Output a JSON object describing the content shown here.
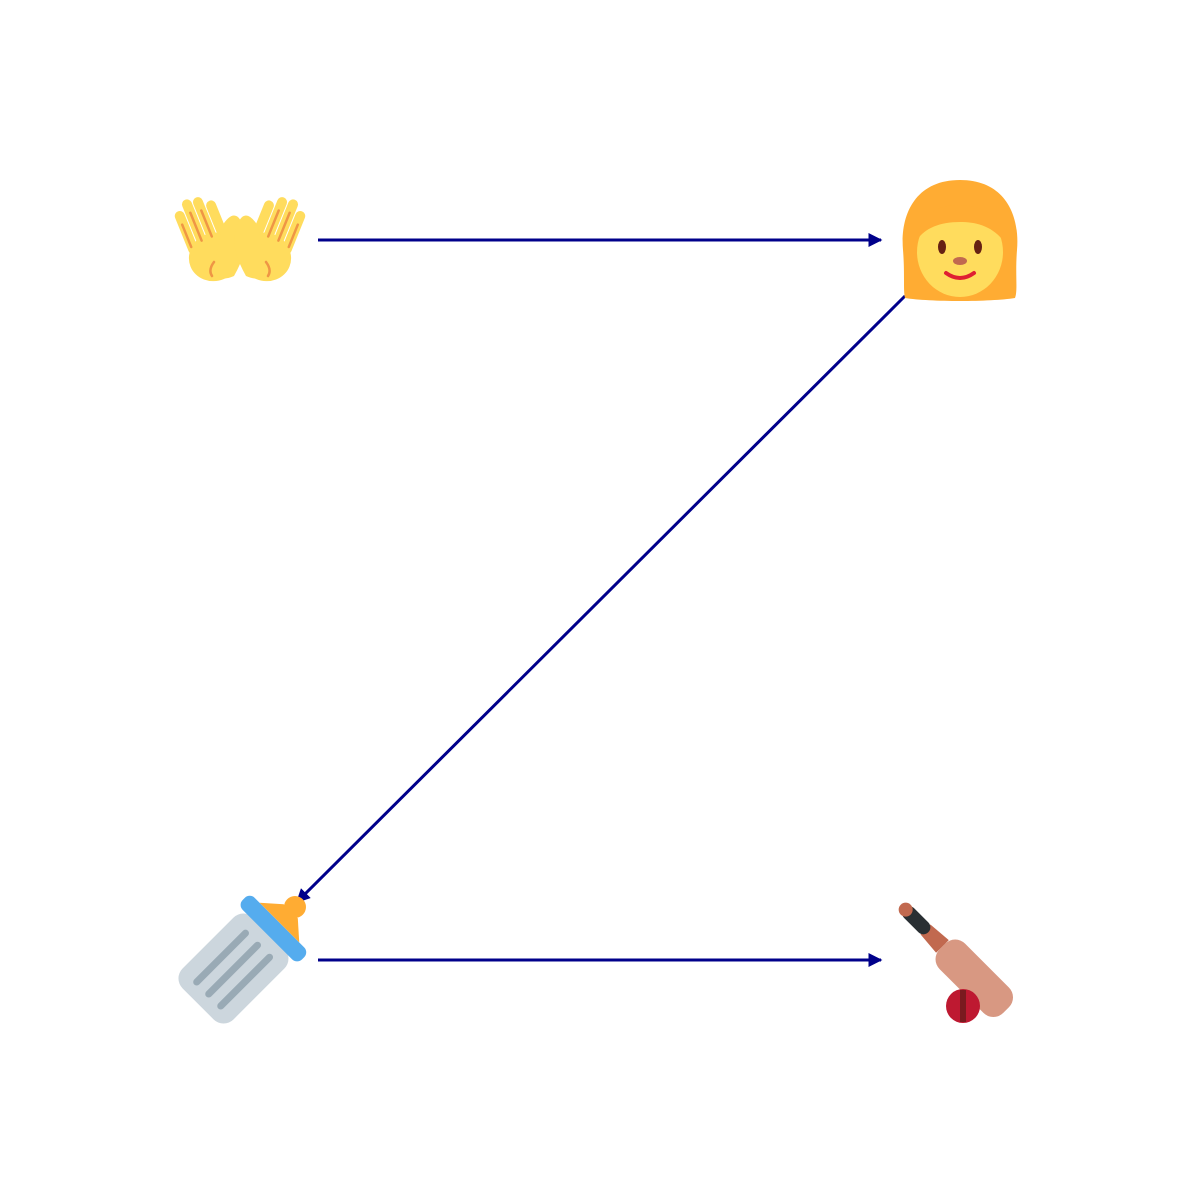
{
  "diagram": {
    "nodes": [
      {
        "id": "open-hands",
        "icon": "open-hands-icon"
      },
      {
        "id": "woman",
        "icon": "woman-icon"
      },
      {
        "id": "baby-bottle",
        "icon": "baby-bottle-icon"
      },
      {
        "id": "cricket",
        "icon": "cricket-bat-ball-icon"
      }
    ],
    "edges": [
      {
        "from": "open-hands",
        "to": "woman"
      },
      {
        "from": "woman",
        "to": "baby-bottle"
      },
      {
        "from": "baby-bottle",
        "to": "cricket"
      }
    ]
  },
  "colors": {
    "edge": "#00008b",
    "background": "#ffffff",
    "skin_yellow": "#FFDC5D",
    "hair_orange": "#FFAC33",
    "hand_lines": "#EF9645",
    "bottle_body": "#CCD6DD",
    "bottle_lines": "#99AAB5",
    "bottle_collar": "#55ACEE",
    "cricket_hand": "#D89882",
    "cricket_ball": "#BE1931"
  }
}
